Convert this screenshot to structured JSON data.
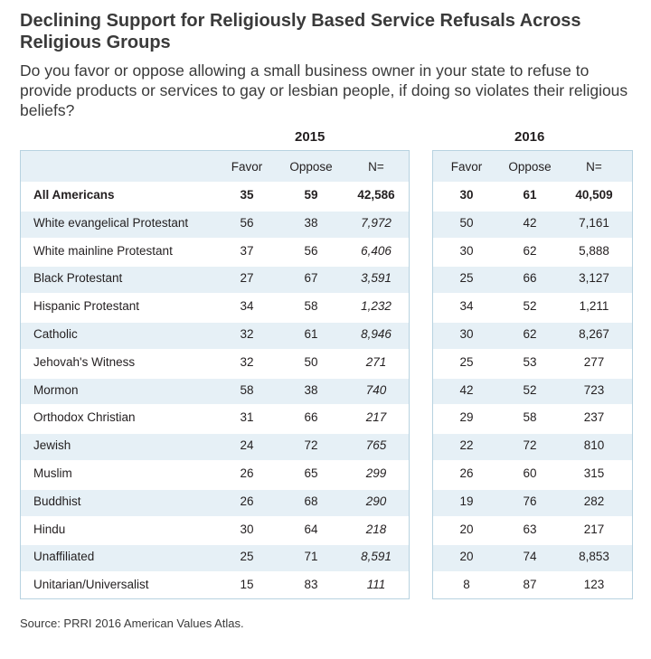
{
  "title": "Declining Support for Religiously Based Service Refusals Across Religious Groups",
  "subtitle": "Do you favor or oppose allowing a small business owner in your state to refuse to provide products or services to gay or lesbian people, if doing so violates their religious beliefs?",
  "source": "Source: PRRI 2016 American Values Atlas.",
  "colors": {
    "band": "#e6f0f6",
    "border": "#b7d2e0",
    "text": "#231f20"
  },
  "chart_data": {
    "type": "table",
    "columns": [
      "Favor",
      "Oppose",
      "N="
    ],
    "years": [
      "2015",
      "2016"
    ],
    "rows": [
      {
        "label": "All Americans",
        "y2015": [
          "35",
          "59",
          "42,586"
        ],
        "y2016": [
          "30",
          "61",
          "40,509"
        ]
      },
      {
        "label": "White evangelical Protestant",
        "y2015": [
          "56",
          "38",
          "7,972"
        ],
        "y2016": [
          "50",
          "42",
          "7,161"
        ]
      },
      {
        "label": "White mainline Protestant",
        "y2015": [
          "37",
          "56",
          "6,406"
        ],
        "y2016": [
          "30",
          "62",
          "5,888"
        ]
      },
      {
        "label": "Black Protestant",
        "y2015": [
          "27",
          "67",
          "3,591"
        ],
        "y2016": [
          "25",
          "66",
          "3,127"
        ]
      },
      {
        "label": "Hispanic Protestant",
        "y2015": [
          "34",
          "58",
          "1,232"
        ],
        "y2016": [
          "34",
          "52",
          "1,211"
        ]
      },
      {
        "label": "Catholic",
        "y2015": [
          "32",
          "61",
          "8,946"
        ],
        "y2016": [
          "30",
          "62",
          "8,267"
        ]
      },
      {
        "label": "Jehovah's Witness",
        "y2015": [
          "32",
          "50",
          "271"
        ],
        "y2016": [
          "25",
          "53",
          "277"
        ]
      },
      {
        "label": "Mormon",
        "y2015": [
          "58",
          "38",
          "740"
        ],
        "y2016": [
          "42",
          "52",
          "723"
        ]
      },
      {
        "label": "Orthodox Christian",
        "y2015": [
          "31",
          "66",
          "217"
        ],
        "y2016": [
          "29",
          "58",
          "237"
        ]
      },
      {
        "label": "Jewish",
        "y2015": [
          "24",
          "72",
          "765"
        ],
        "y2016": [
          "22",
          "72",
          "810"
        ]
      },
      {
        "label": "Muslim",
        "y2015": [
          "26",
          "65",
          "299"
        ],
        "y2016": [
          "26",
          "60",
          "315"
        ]
      },
      {
        "label": "Buddhist",
        "y2015": [
          "26",
          "68",
          "290"
        ],
        "y2016": [
          "19",
          "76",
          "282"
        ]
      },
      {
        "label": "Hindu",
        "y2015": [
          "30",
          "64",
          "218"
        ],
        "y2016": [
          "20",
          "63",
          "217"
        ]
      },
      {
        "label": "Unaffiliated",
        "y2015": [
          "25",
          "71",
          "8,591"
        ],
        "y2016": [
          "20",
          "74",
          "8,853"
        ]
      },
      {
        "label": "Unitarian/Universalist",
        "y2015": [
          "15",
          "83",
          "111"
        ],
        "y2016": [
          "8",
          "87",
          "123"
        ]
      }
    ]
  }
}
